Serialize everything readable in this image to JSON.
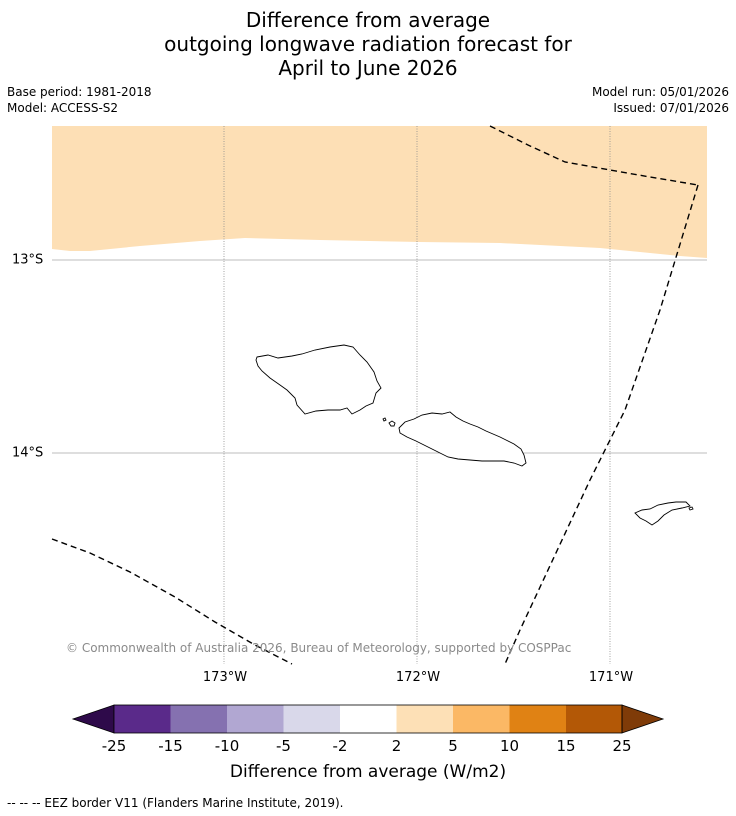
{
  "title": {
    "line1": "Difference from average",
    "line2": "outgoing longwave radiation forecast for",
    "line3": "April to June 2026"
  },
  "meta": {
    "base_period": "Base period: 1981-2018",
    "model": "Model: ACCESS-S2",
    "model_run": "Model run: 05/01/2026",
    "issued": "Issued: 07/01/2026"
  },
  "map": {
    "region": "Samoa and American Samoa",
    "lat_labels": [
      "13°S",
      "14°S"
    ],
    "lon_labels": [
      "173°W",
      "172°W",
      "171°W"
    ],
    "copyright": "© Commonwealth of Australia 2026, Bureau of Meteorology, supported by COSPPac",
    "anomaly_band_color": "#fddfb5",
    "background_color": "#ffffff"
  },
  "colorbar": {
    "ticks": [
      "-25",
      "-15",
      "-10",
      "-5",
      "-2",
      "2",
      "5",
      "10",
      "15",
      "25"
    ],
    "colors": [
      "#2e0a4a",
      "#5a2a8a",
      "#8571b0",
      "#b1a7d2",
      "#d9d8ea",
      "#ffffff",
      "#fde0b6",
      "#fbb865",
      "#e08214",
      "#b35806",
      "#7f3b08"
    ],
    "label": "Difference from average (W/m2)"
  },
  "footer": {
    "legend_text": "--  --  -- EEZ border V11 (Flanders Marine Institute, 2019)."
  }
}
